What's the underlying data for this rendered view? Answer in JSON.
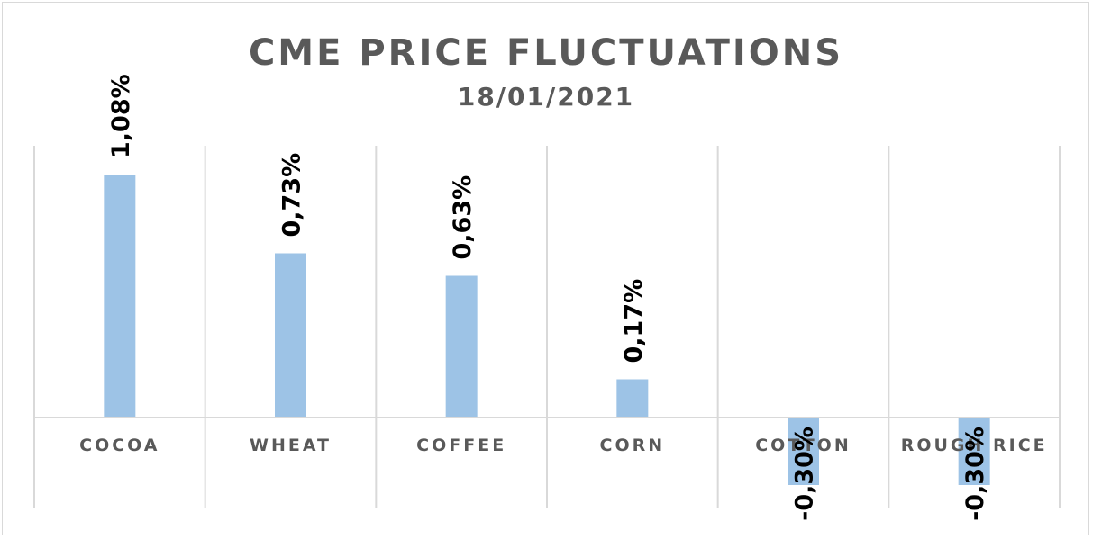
{
  "chart_data": {
    "type": "bar",
    "title": "CME PRICE FLUCTUATIONS",
    "subtitle": "18/01/2021",
    "categories": [
      "COCOA",
      "WHEAT",
      "COFFEE",
      "CORN",
      "COTTON",
      "ROUGH RICE"
    ],
    "values": [
      1.08,
      0.73,
      0.63,
      0.17,
      -0.3,
      -0.3
    ],
    "data_labels": [
      "1,08%",
      "0,73%",
      "0,63%",
      "0,17%",
      "-0,30%",
      "-0,30%"
    ],
    "ylim": [
      -0.4,
      1.2
    ],
    "grid": "vertical",
    "legend": "none",
    "bar_color": "#9dc3e6"
  }
}
